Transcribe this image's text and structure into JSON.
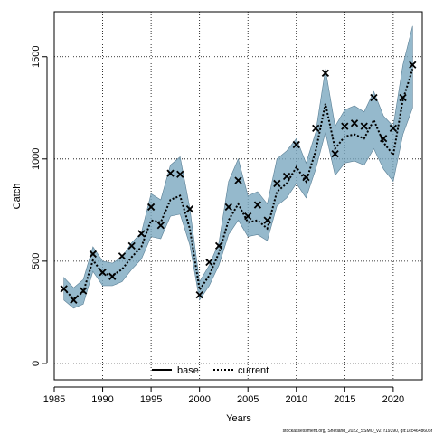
{
  "chart_data": {
    "type": "line",
    "xlabel": "Years",
    "ylabel": "Catch",
    "xlim": [
      1985,
      2023
    ],
    "ylim": [
      -80,
      1720
    ],
    "x_ticks": [
      1985,
      1990,
      1995,
      2000,
      2005,
      2010,
      2015,
      2020
    ],
    "y_ticks": [
      0,
      500,
      1000,
      1500
    ],
    "grid": true,
    "legend_position": "bottom-center",
    "legend": [
      {
        "label": "base",
        "style": "solid"
      },
      {
        "label": "current",
        "style": "dotted"
      }
    ],
    "colors": {
      "band_fill": "#7ba7bf",
      "band_edge": "#5a7f95",
      "line": "#000000",
      "marker": "#000000"
    },
    "series": [
      {
        "name": "current",
        "kind": "line",
        "x": [
          1986,
          1987,
          1988,
          1989,
          1990,
          1991,
          1992,
          1993,
          1994,
          1995,
          1996,
          1997,
          1998,
          1999,
          2000,
          2001,
          2002,
          2003,
          2004,
          2005,
          2006,
          2007,
          2008,
          2009,
          2010,
          2011,
          2012,
          2013,
          2014,
          2015,
          2016,
          2017,
          2018,
          2019,
          2020,
          2021,
          2022
        ],
        "values": [
          365,
          315,
          350,
          505,
          440,
          430,
          460,
          520,
          570,
          700,
          690,
          800,
          820,
          660,
          360,
          430,
          540,
          700,
          780,
          690,
          700,
          660,
          840,
          880,
          960,
          890,
          1040,
          1270,
          1050,
          1110,
          1120,
          1100,
          1190,
          1080,
          1020,
          1290,
          1440
        ],
        "lower": [
          310,
          270,
          290,
          450,
          380,
          380,
          400,
          460,
          510,
          620,
          610,
          720,
          730,
          580,
          310,
          380,
          480,
          630,
          700,
          620,
          630,
          600,
          770,
          810,
          880,
          810,
          950,
          1130,
          920,
          980,
          990,
          970,
          1050,
          950,
          890,
          1120,
          1250
        ],
        "upper": [
          420,
          370,
          410,
          570,
          500,
          490,
          520,
          590,
          640,
          830,
          800,
          970,
          1010,
          760,
          400,
          480,
          590,
          890,
          1000,
          820,
          840,
          780,
          1000,
          1040,
          1100,
          980,
          1130,
          1440,
          1160,
          1240,
          1260,
          1230,
          1330,
          1210,
          1160,
          1460,
          1650
        ]
      },
      {
        "name": "",
        "kind": "points",
        "x": [
          1986,
          1987,
          1988,
          1989,
          1990,
          1991,
          1992,
          1993,
          1994,
          1995,
          1996,
          1997,
          1998,
          1999,
          2000,
          2001,
          2002,
          2003,
          2004,
          2005,
          2006,
          2007,
          2008,
          2009,
          2010,
          2011,
          2012,
          2013,
          2014,
          2015,
          2016,
          2017,
          2018,
          2019,
          2020,
          2021,
          2022
        ],
        "values": [
          365,
          310,
          355,
          535,
          445,
          425,
          525,
          575,
          635,
          765,
          675,
          930,
          925,
          755,
          335,
          495,
          575,
          765,
          895,
          720,
          775,
          700,
          880,
          915,
          1070,
          910,
          1150,
          1420,
          1025,
          1160,
          1175,
          1160,
          1300,
          1100,
          1150,
          1300,
          1460
        ]
      }
    ],
    "footer": "stockassessment.org, Shetland_2022_SSMO_v2, r19390, git:1cc464b606f"
  }
}
